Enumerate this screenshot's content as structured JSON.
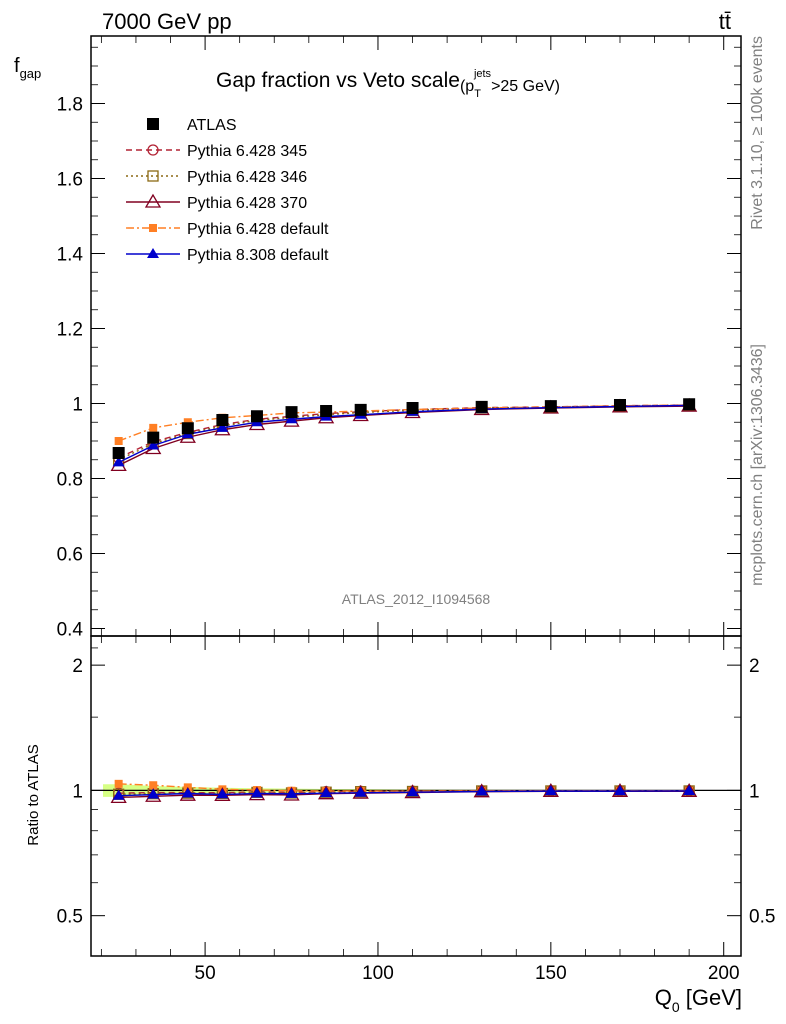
{
  "header": {
    "energy_label": "7000 GeV pp",
    "process_label": "tt̄"
  },
  "side_labels": {
    "rivet": "Rivet 3.1.10, ≥ 100k events",
    "source": "mcplots.cern.ch [arXiv:1306.3436]"
  },
  "analysis_id": "ATLAS_2012_I1094568",
  "chart_data": [
    {
      "type": "line",
      "title": "Gap fraction vs Veto scale",
      "title_suffix": {
        "open": "(p",
        "sup": "jets",
        "sub": "T",
        "close": ">25 GeV)"
      },
      "ylabel": {
        "main": "f",
        "sub": "gap"
      },
      "ylim": [
        0.38,
        1.98
      ],
      "yticks": [
        0.4,
        0.6,
        0.8,
        1,
        1.2,
        1.4,
        1.6,
        1.8
      ],
      "ytick_labels": [
        "0.4",
        "0.6",
        "0.8",
        "1",
        "1.2",
        "1.4",
        "1.6",
        "1.8"
      ],
      "xlim": [
        17,
        205
      ],
      "x": [
        25,
        35,
        45,
        55,
        65,
        75,
        85,
        95,
        110,
        130,
        150,
        170,
        190
      ],
      "legend_position": "top-left",
      "series": [
        {
          "name": "ATLAS",
          "color": "#000000",
          "marker": "square-filled",
          "line": "none",
          "values": [
            0.868,
            0.909,
            0.934,
            0.956,
            0.966,
            0.977,
            0.98,
            0.983,
            0.988,
            0.991,
            0.993,
            0.996,
            0.998
          ]
        },
        {
          "name": "Pythia 6.428 345",
          "color": "#b22234",
          "marker": "circle-open",
          "line": "dashed",
          "values": [
            0.855,
            0.898,
            0.923,
            0.944,
            0.958,
            0.966,
            0.973,
            0.978,
            0.984,
            0.989,
            0.991,
            0.994,
            0.996
          ]
        },
        {
          "name": "Pythia 6.428 346",
          "color": "#8b6914",
          "marker": "square-open",
          "line": "dotted",
          "values": [
            0.85,
            0.893,
            0.92,
            0.94,
            0.955,
            0.963,
            0.97,
            0.976,
            0.982,
            0.988,
            0.99,
            0.993,
            0.995
          ]
        },
        {
          "name": "Pythia 6.428 370",
          "color": "#800020",
          "marker": "triangle-open",
          "line": "solid",
          "values": [
            0.835,
            0.88,
            0.91,
            0.93,
            0.944,
            0.953,
            0.962,
            0.968,
            0.976,
            0.984,
            0.988,
            0.991,
            0.993
          ]
        },
        {
          "name": "Pythia 6.428 default",
          "color": "#ff7f24",
          "marker": "square-filled-small",
          "line": "dashdot",
          "values": [
            0.9,
            0.935,
            0.95,
            0.962,
            0.968,
            0.975,
            0.977,
            0.98,
            0.984,
            0.988,
            0.991,
            0.994,
            0.996
          ]
        },
        {
          "name": "Pythia 8.308 default",
          "color": "#0000cc",
          "marker": "triangle-filled",
          "line": "solid",
          "values": [
            0.843,
            0.888,
            0.918,
            0.935,
            0.95,
            0.958,
            0.965,
            0.97,
            0.978,
            0.985,
            0.989,
            0.992,
            0.995
          ]
        }
      ]
    },
    {
      "type": "line",
      "ylabel": "Ratio to ATLAS",
      "scale": "log",
      "ylim": [
        0.4,
        2.35
      ],
      "yticks": [
        0.5,
        1,
        2
      ],
      "ytick_labels": [
        "0.5",
        "1",
        "2"
      ],
      "xlim": [
        17,
        205
      ],
      "xticks": [
        50,
        100,
        150,
        200
      ],
      "xtick_labels": [
        "50",
        "100",
        "150",
        "200"
      ],
      "xlabel": {
        "main": "Q",
        "sub": "0",
        "unit": " [GeV]"
      },
      "x": [
        25,
        35,
        45,
        55,
        65,
        75,
        85,
        95,
        110,
        130,
        150,
        170,
        190
      ],
      "band": {
        "color": "#ccff66",
        "lo": [
          0.965,
          0.975,
          0.98,
          0.985,
          0.988,
          0.99,
          0.992,
          0.993,
          0.995,
          0.996,
          0.997,
          0.998,
          0.998
        ],
        "hi": [
          1.035,
          1.025,
          1.02,
          1.015,
          1.012,
          1.01,
          1.008,
          1.007,
          1.005,
          1.004,
          1.003,
          1.002,
          1.002
        ]
      },
      "series": [
        {
          "name": "Pythia 6.428 345",
          "color": "#b22234",
          "marker": "circle-open",
          "line": "dashed",
          "values": [
            0.985,
            0.988,
            0.988,
            0.987,
            0.992,
            0.989,
            0.993,
            0.995,
            0.996,
            0.998,
            0.998,
            0.998,
            0.998
          ]
        },
        {
          "name": "Pythia 6.428 346",
          "color": "#8b6914",
          "marker": "square-open",
          "line": "dotted",
          "values": [
            0.979,
            0.982,
            0.985,
            0.983,
            0.989,
            0.986,
            0.99,
            0.993,
            0.994,
            0.997,
            0.997,
            0.997,
            0.997
          ]
        },
        {
          "name": "Pythia 6.428 370",
          "color": "#800020",
          "marker": "triangle-open",
          "line": "solid",
          "values": [
            0.962,
            0.968,
            0.974,
            0.973,
            0.977,
            0.975,
            0.982,
            0.985,
            0.988,
            0.993,
            0.995,
            0.995,
            0.995
          ]
        },
        {
          "name": "Pythia 6.428 default",
          "color": "#ff7f24",
          "marker": "square-filled-small",
          "line": "dashdot",
          "values": [
            1.037,
            1.029,
            1.017,
            1.006,
            1.002,
            0.998,
            0.997,
            0.997,
            0.996,
            0.997,
            0.998,
            0.998,
            0.998
          ]
        },
        {
          "name": "Pythia 8.308 default",
          "color": "#0000cc",
          "marker": "triangle-filled",
          "line": "solid",
          "values": [
            0.971,
            0.977,
            0.983,
            0.978,
            0.983,
            0.981,
            0.985,
            0.987,
            0.99,
            0.994,
            0.996,
            0.996,
            0.997
          ]
        }
      ]
    }
  ]
}
